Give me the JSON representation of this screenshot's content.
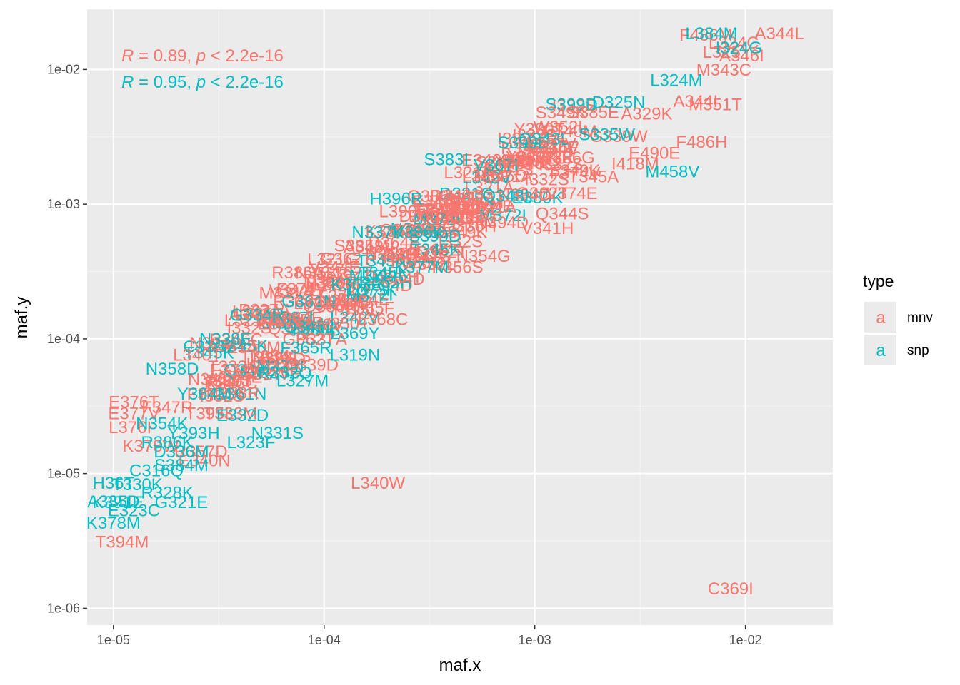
{
  "chart_data": {
    "type": "scatter",
    "xlabel": "maf.x",
    "ylabel": "maf.y",
    "x_scale": "log10",
    "y_scale": "log10",
    "xlim": [
      7.5e-06,
      0.026
    ],
    "ylim": [
      7.5e-07,
      0.028
    ],
    "x_ticks": [
      {
        "value": 1e-05,
        "label": "1e-05"
      },
      {
        "value": 0.0001,
        "label": "1e-04"
      },
      {
        "value": 0.001,
        "label": "1e-03"
      },
      {
        "value": 0.01,
        "label": "1e-02"
      }
    ],
    "y_ticks": [
      {
        "value": 1e-06,
        "label": "1e-06"
      },
      {
        "value": 1e-05,
        "label": "1e-05"
      },
      {
        "value": 0.0001,
        "label": "1e-04"
      },
      {
        "value": 0.001,
        "label": "1e-03"
      },
      {
        "value": 0.01,
        "label": "1e-02"
      }
    ],
    "grid": true,
    "legend": {
      "title": "type",
      "position": "right",
      "glyph": "a",
      "items": [
        {
          "name": "mnv",
          "color": "#F8766D"
        },
        {
          "name": "snp",
          "color": "#00BFC4"
        }
      ]
    },
    "annotations": [
      {
        "series": "mnv",
        "r_label": "R",
        "r_text": " = 0.89, ",
        "p_label": "p",
        "p_text": " < 2.2e-16",
        "color": "#F8766D"
      },
      {
        "series": "snp",
        "r_label": "R",
        "r_text": " = 0.95, ",
        "p_label": "p",
        "p_text": " < 2.2e-16",
        "color": "#00BFC4"
      }
    ],
    "series": [
      {
        "name": "mnv",
        "color": "#F8766D",
        "points": [
          {
            "label": "A344L",
            "x": 0.0145,
            "y": 0.0185
          },
          {
            "label": "F486M",
            "x": 0.0065,
            "y": 0.018
          },
          {
            "label": "L324C",
            "x": 0.0088,
            "y": 0.0158
          },
          {
            "label": "L325Y",
            "x": 0.0082,
            "y": 0.0135
          },
          {
            "label": "A346I",
            "x": 0.0096,
            "y": 0.0127
          },
          {
            "label": "M343C",
            "x": 0.0079,
            "y": 0.0099
          },
          {
            "label": "A344I",
            "x": 0.0058,
            "y": 0.0058
          },
          {
            "label": "M351T",
            "x": 0.0072,
            "y": 0.0055
          },
          {
            "label": "S385E",
            "x": 0.0019,
            "y": 0.0048
          },
          {
            "label": "A329K",
            "x": 0.0034,
            "y": 0.0047
          },
          {
            "label": "F486H",
            "x": 0.0062,
            "y": 0.0029
          },
          {
            "label": "E490E",
            "x": 0.0037,
            "y": 0.0024
          },
          {
            "label": "L387V",
            "x": 0.0012,
            "y": 0.0028
          },
          {
            "label": "G339W",
            "x": 0.0025,
            "y": 0.0032
          },
          {
            "label": "V374E",
            "x": 0.0015,
            "y": 0.0012
          },
          {
            "label": "I418M",
            "x": 0.003,
            "y": 0.002
          },
          {
            "label": "Y380A",
            "x": 0.00085,
            "y": 0.0021
          },
          {
            "label": "T345A",
            "x": 0.0019,
            "y": 0.0016
          },
          {
            "label": "Q344S",
            "x": 0.00135,
            "y": 0.00085
          },
          {
            "label": "V341H",
            "x": 0.00115,
            "y": 0.00066
          },
          {
            "label": "L390R",
            "x": 0.00024,
            "y": 0.00088
          },
          {
            "label": "S385M",
            "x": 0.00015,
            "y": 0.00049
          },
          {
            "label": "L321G",
            "x": 0.00011,
            "y": 0.00039
          },
          {
            "label": "R386A",
            "x": 7.5e-05,
            "y": 0.00031
          },
          {
            "label": "N354G",
            "x": 0.00057,
            "y": 0.00041
          },
          {
            "label": "K356S",
            "x": 0.00043,
            "y": 0.00034
          },
          {
            "label": "L387A",
            "x": 4.8e-05,
            "y": 0.00016
          },
          {
            "label": "M331A",
            "x": 6.6e-05,
            "y": 0.00022
          },
          {
            "label": "Y342S",
            "x": 0.000105,
            "y": 0.00018
          },
          {
            "label": "L368C",
            "x": 0.00019,
            "y": 0.00014
          },
          {
            "label": "V350T",
            "x": 0.000125,
            "y": 0.00013
          },
          {
            "label": "L340T",
            "x": 2.5e-05,
            "y": 7.6e-05
          },
          {
            "label": "T333A",
            "x": 3.7e-05,
            "y": 6.2e-05
          },
          {
            "label": "N341Y",
            "x": 3e-05,
            "y": 5e-05
          },
          {
            "label": "A352W",
            "x": 5e-05,
            "y": 5.5e-05
          },
          {
            "label": "G339D",
            "x": 8.7e-05,
            "y": 6.4e-05
          },
          {
            "label": "E376T",
            "x": 1.25e-05,
            "y": 3.4e-05
          },
          {
            "label": "E377V",
            "x": 1.25e-05,
            "y": 2.8e-05
          },
          {
            "label": "T333M",
            "x": 3.6e-05,
            "y": 2.8e-05
          },
          {
            "label": "F347R",
            "x": 1.8e-05,
            "y": 3.1e-05
          },
          {
            "label": "L376I",
            "x": 1.2e-05,
            "y": 2.2e-05
          },
          {
            "label": "K378W",
            "x": 1.5e-05,
            "y": 1.6e-05
          },
          {
            "label": "R357D",
            "x": 2.6e-05,
            "y": 1.45e-05
          },
          {
            "label": "E340N",
            "x": 2.7e-05,
            "y": 1.25e-05
          },
          {
            "label": "L340W",
            "x": 0.00018,
            "y": 8.5e-06
          },
          {
            "label": "T394M",
            "x": 1.1e-05,
            "y": 3.1e-06
          },
          {
            "label": "C369I",
            "x": 0.0085,
            "y": 1.4e-06
          }
        ]
      },
      {
        "name": "snp",
        "color": "#00BFC4",
        "points": [
          {
            "label": "L384M",
            "x": 0.0069,
            "y": 0.0185
          },
          {
            "label": "I324G",
            "x": 0.0093,
            "y": 0.0145
          },
          {
            "label": "L324M",
            "x": 0.0047,
            "y": 0.0083
          },
          {
            "label": "D325N",
            "x": 0.0025,
            "y": 0.0057
          },
          {
            "label": "S335W",
            "x": 0.0022,
            "y": 0.0033
          },
          {
            "label": "M458V",
            "x": 0.0045,
            "y": 0.00175
          },
          {
            "label": "S383I",
            "x": 0.00038,
            "y": 0.00215
          },
          {
            "label": "H396R",
            "x": 0.00022,
            "y": 0.0011
          },
          {
            "label": "N337K",
            "x": 0.00018,
            "y": 0.00062
          },
          {
            "label": "V386K",
            "x": 0.00028,
            "y": 0.00062
          },
          {
            "label": "K377M",
            "x": 0.00029,
            "y": 0.00034
          },
          {
            "label": "L373K",
            "x": 0.00017,
            "y": 0.00023
          },
          {
            "label": "G334R",
            "x": 4.8e-05,
            "y": 0.00015
          },
          {
            "label": "L369Y",
            "x": 0.00014,
            "y": 0.00011
          },
          {
            "label": "N338E",
            "x": 3.4e-05,
            "y": 0.0001
          },
          {
            "label": "F365R",
            "x": 8.2e-05,
            "y": 8.6e-05
          },
          {
            "label": "L319N",
            "x": 0.00014,
            "y": 7.6e-05
          },
          {
            "label": "N358D",
            "x": 1.9e-05,
            "y": 6e-05
          },
          {
            "label": "R332Q",
            "x": 6.5e-05,
            "y": 5.6e-05
          },
          {
            "label": "L327M",
            "x": 7.9e-05,
            "y": 4.9e-05
          },
          {
            "label": "Y364M",
            "x": 2.7e-05,
            "y": 3.9e-05
          },
          {
            "label": "E332D",
            "x": 4.1e-05,
            "y": 2.7e-05
          },
          {
            "label": "N354K",
            "x": 1.7e-05,
            "y": 2.35e-05
          },
          {
            "label": "Y393H",
            "x": 2.4e-05,
            "y": 2e-05
          },
          {
            "label": "N331S",
            "x": 6e-05,
            "y": 2e-05
          },
          {
            "label": "L323F",
            "x": 4.5e-05,
            "y": 1.7e-05
          },
          {
            "label": "R386K",
            "x": 1.8e-05,
            "y": 1.7e-05
          },
          {
            "label": "D336M",
            "x": 2.1e-05,
            "y": 1.45e-05
          },
          {
            "label": "C316Q",
            "x": 1.6e-05,
            "y": 1.05e-05
          },
          {
            "label": "S384M",
            "x": 2.1e-05,
            "y": 1.15e-05
          },
          {
            "label": "H36T",
            "x": 1e-05,
            "y": 8.5e-06
          },
          {
            "label": "T330K",
            "x": 1.3e-05,
            "y": 8.3e-06
          },
          {
            "label": "R328K",
            "x": 1.8e-05,
            "y": 7.2e-06
          },
          {
            "label": "A335D",
            "x": 1e-05,
            "y": 6.2e-06
          },
          {
            "label": "K391E",
            "x": 1.05e-05,
            "y": 6.1e-06
          },
          {
            "label": "E323C",
            "x": 1.25e-05,
            "y": 5.3e-06
          },
          {
            "label": "G321E",
            "x": 2.1e-05,
            "y": 6.1e-06
          },
          {
            "label": "K378M",
            "x": 1e-05,
            "y": 4.3e-06
          }
        ]
      }
    ],
    "dense_cluster": {
      "mnv_labels": [
        "L321A",
        "V344E",
        "N358R",
        "A341S",
        "G362T",
        "F374V",
        "T395L",
        "Q336H",
        "R346C",
        "S349K",
        "D364E",
        "L335F",
        "Y380T",
        "K386G",
        "W352L",
        "A348V",
        "E340M",
        "I332S",
        "N394D",
        "P337A"
      ],
      "snp_labels": [
        "T345K",
        "G361N",
        "L342V",
        "M372I",
        "S399D",
        "R355H",
        "F392S",
        "C336Y",
        "A366T",
        "V367I",
        "K363R",
        "E380K",
        "D331G",
        "Q343L",
        "Y385C",
        "N360S"
      ]
    }
  }
}
